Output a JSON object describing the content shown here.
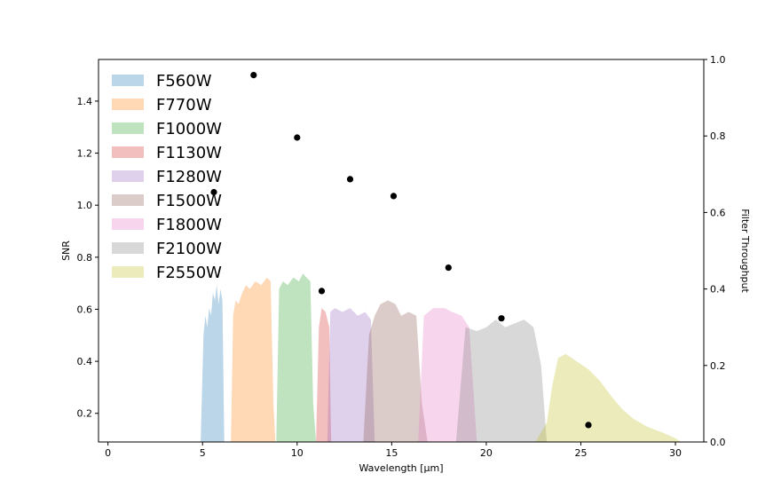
{
  "chart_data": {
    "type": "scatter",
    "title": "",
    "xlabel": "Wavelength [μm]",
    "ylabel": "SNR",
    "y2label": "Filter Throughput",
    "xlim": [
      -0.5,
      31.5
    ],
    "ylim": [
      0.09,
      1.56
    ],
    "y2lim": [
      0.0,
      1.0
    ],
    "xticks": [
      0,
      5,
      10,
      15,
      20,
      25,
      30
    ],
    "yticks": [
      0.2,
      0.4,
      0.6,
      0.8,
      1.0,
      1.2,
      1.4
    ],
    "y2ticks": [
      0.0,
      0.2,
      0.4,
      0.6,
      0.8,
      1.0
    ],
    "xtick_labels": [
      "0",
      "5",
      "10",
      "15",
      "20",
      "25",
      "30"
    ],
    "ytick_labels": [
      "0.2",
      "0.4",
      "0.6",
      "0.8",
      "1.0",
      "1.2",
      "1.4"
    ],
    "y2tick_labels": [
      "0.0",
      "0.2",
      "0.4",
      "0.6",
      "0.8",
      "1.0"
    ],
    "legend_position": "top-left",
    "grid": false,
    "snr_points": {
      "x": [
        5.6,
        7.7,
        10.0,
        11.3,
        12.8,
        15.1,
        18.0,
        20.8,
        25.4
      ],
      "y": [
        1.05,
        1.5,
        1.26,
        0.67,
        1.1,
        1.035,
        0.76,
        0.565,
        0.155
      ],
      "color": "#000000"
    },
    "filters": [
      {
        "name": "F560W",
        "color": "#1f77b4",
        "points": [
          [
            4.9,
            0
          ],
          [
            5.05,
            0.28
          ],
          [
            5.15,
            0.33
          ],
          [
            5.25,
            0.3
          ],
          [
            5.35,
            0.35
          ],
          [
            5.45,
            0.33
          ],
          [
            5.55,
            0.39
          ],
          [
            5.65,
            0.37
          ],
          [
            5.75,
            0.41
          ],
          [
            5.85,
            0.36
          ],
          [
            5.95,
            0.4
          ],
          [
            6.05,
            0.37
          ],
          [
            6.15,
            0.0
          ],
          [
            6.3,
            0
          ]
        ]
      },
      {
        "name": "F770W",
        "color": "#ff7f0e",
        "points": [
          [
            6.5,
            0
          ],
          [
            6.62,
            0.33
          ],
          [
            6.75,
            0.37
          ],
          [
            6.9,
            0.36
          ],
          [
            7.1,
            0.39
          ],
          [
            7.3,
            0.41
          ],
          [
            7.5,
            0.4
          ],
          [
            7.8,
            0.42
          ],
          [
            8.1,
            0.41
          ],
          [
            8.4,
            0.43
          ],
          [
            8.6,
            0.42
          ],
          [
            8.75,
            0.1
          ],
          [
            8.85,
            0
          ]
        ]
      },
      {
        "name": "F1000W",
        "color": "#2ca02c",
        "points": [
          [
            8.9,
            0
          ],
          [
            9.05,
            0.4
          ],
          [
            9.25,
            0.42
          ],
          [
            9.5,
            0.41
          ],
          [
            9.8,
            0.43
          ],
          [
            10.1,
            0.42
          ],
          [
            10.3,
            0.44
          ],
          [
            10.5,
            0.43
          ],
          [
            10.7,
            0.42
          ],
          [
            10.85,
            0.1
          ],
          [
            11.0,
            0
          ]
        ]
      },
      {
        "name": "F1130W",
        "color": "#d62728",
        "points": [
          [
            11.0,
            0
          ],
          [
            11.15,
            0.3
          ],
          [
            11.3,
            0.35
          ],
          [
            11.5,
            0.34
          ],
          [
            11.7,
            0.3
          ],
          [
            11.8,
            0
          ]
        ]
      },
      {
        "name": "F1280W",
        "color": "#9467bd",
        "points": [
          [
            11.6,
            0
          ],
          [
            11.75,
            0.34
          ],
          [
            12.0,
            0.35
          ],
          [
            12.4,
            0.34
          ],
          [
            12.8,
            0.35
          ],
          [
            13.2,
            0.33
          ],
          [
            13.6,
            0.34
          ],
          [
            13.9,
            0.32
          ],
          [
            14.1,
            0
          ]
        ]
      },
      {
        "name": "F1500W",
        "color": "#8c564b",
        "points": [
          [
            13.5,
            0
          ],
          [
            13.8,
            0.28
          ],
          [
            14.1,
            0.33
          ],
          [
            14.4,
            0.36
          ],
          [
            14.8,
            0.37
          ],
          [
            15.2,
            0.36
          ],
          [
            15.5,
            0.33
          ],
          [
            15.9,
            0.34
          ],
          [
            16.3,
            0.33
          ],
          [
            16.6,
            0.1
          ],
          [
            16.9,
            0
          ]
        ]
      },
      {
        "name": "F1800W",
        "color": "#e377c2",
        "points": [
          [
            16.4,
            0
          ],
          [
            16.7,
            0.33
          ],
          [
            17.2,
            0.35
          ],
          [
            17.8,
            0.35
          ],
          [
            18.2,
            0.34
          ],
          [
            18.7,
            0.33
          ],
          [
            19.1,
            0.3
          ],
          [
            19.5,
            0
          ]
        ]
      },
      {
        "name": "F2100W",
        "color": "#7f7f7f",
        "points": [
          [
            18.4,
            0
          ],
          [
            18.9,
            0.3
          ],
          [
            19.5,
            0.29
          ],
          [
            20.0,
            0.3
          ],
          [
            20.5,
            0.32
          ],
          [
            21.0,
            0.3
          ],
          [
            21.5,
            0.31
          ],
          [
            22.0,
            0.32
          ],
          [
            22.5,
            0.3
          ],
          [
            22.9,
            0.2
          ],
          [
            23.2,
            0
          ]
        ]
      },
      {
        "name": "F2550W",
        "color": "#bcbd22",
        "points": [
          [
            22.6,
            0
          ],
          [
            23.2,
            0.05
          ],
          [
            23.5,
            0.15
          ],
          [
            23.8,
            0.22
          ],
          [
            24.2,
            0.23
          ],
          [
            24.8,
            0.21
          ],
          [
            25.4,
            0.19
          ],
          [
            26.0,
            0.16
          ],
          [
            26.6,
            0.12
          ],
          [
            27.2,
            0.085
          ],
          [
            27.8,
            0.06
          ],
          [
            28.5,
            0.04
          ],
          [
            29.3,
            0.025
          ],
          [
            30.0,
            0.01
          ],
          [
            30.3,
            0
          ]
        ]
      }
    ]
  }
}
